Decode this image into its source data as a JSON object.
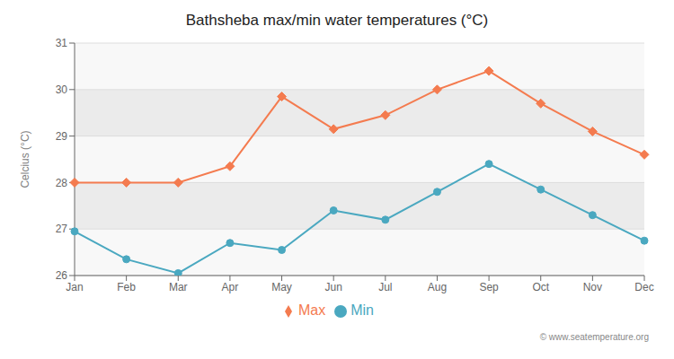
{
  "chart_data": {
    "type": "line",
    "title": "Bathsheba max/min water temperatures (°C)",
    "ylabel": "Celcius (°C)",
    "categories": [
      "Jan",
      "Feb",
      "Mar",
      "Apr",
      "May",
      "Jun",
      "Jul",
      "Aug",
      "Sep",
      "Oct",
      "Nov",
      "Dec"
    ],
    "series": [
      {
        "name": "Max",
        "color": "#f47b4f",
        "marker": "diamond",
        "values": [
          28.0,
          28.0,
          28.0,
          28.35,
          29.85,
          29.15,
          29.45,
          30.0,
          30.4,
          29.7,
          29.1,
          28.6
        ]
      },
      {
        "name": "Min",
        "color": "#4aa8c0",
        "marker": "circle",
        "values": [
          26.95,
          26.35,
          26.05,
          26.7,
          26.55,
          27.4,
          27.2,
          27.8,
          28.4,
          27.85,
          27.3,
          26.75
        ]
      }
    ],
    "ylim": [
      26.0,
      31.0
    ],
    "yticks": [
      26,
      27,
      28,
      29,
      30,
      31
    ],
    "grid": true,
    "legend": "bottom",
    "annotations": [
      "© www.seatemperature.org"
    ]
  }
}
